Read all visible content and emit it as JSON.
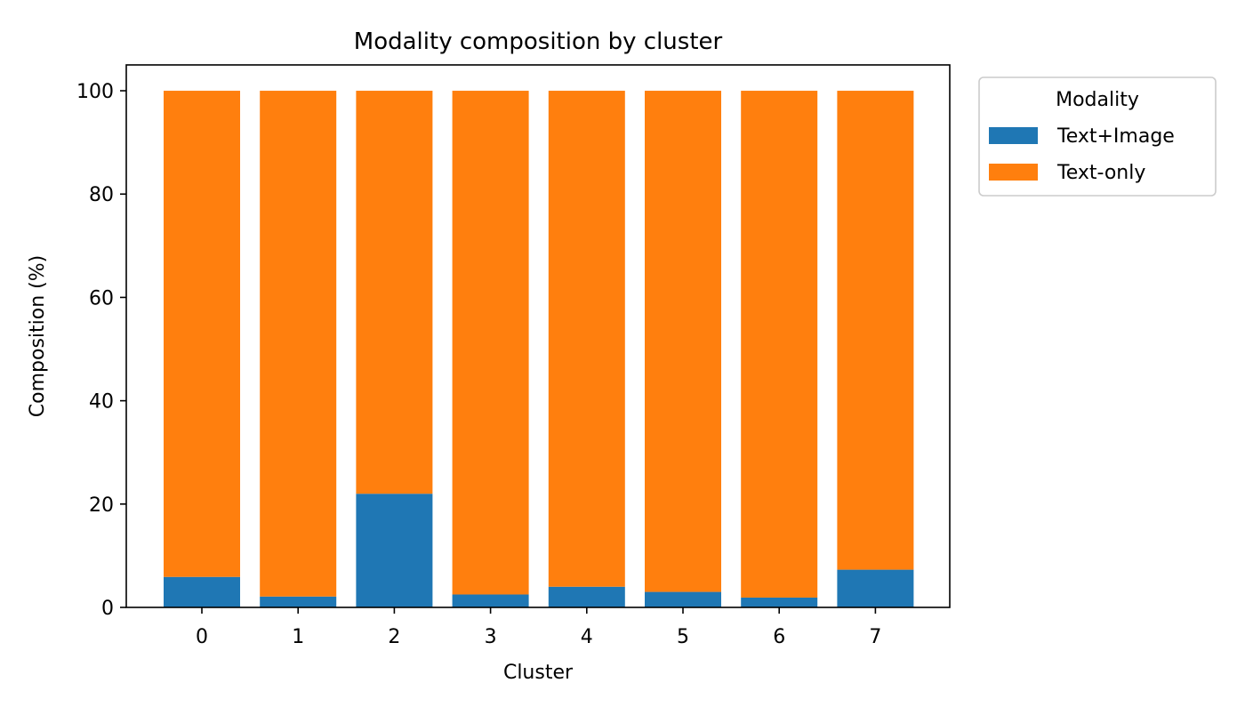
{
  "chart_data": {
    "type": "bar",
    "stacked": true,
    "title": "Modality composition by cluster",
    "xlabel": "Cluster",
    "ylabel": "Composition (%)",
    "ylim": [
      0,
      105
    ],
    "yticks": [
      0,
      20,
      40,
      60,
      80,
      100
    ],
    "categories": [
      "0",
      "1",
      "2",
      "3",
      "4",
      "5",
      "6",
      "7"
    ],
    "series": [
      {
        "name": "Text+Image",
        "color": "#1f77b4",
        "values": [
          5.9,
          2.1,
          22.0,
          2.5,
          4.0,
          3.0,
          1.9,
          7.3
        ]
      },
      {
        "name": "Text-only",
        "color": "#ff7f0e",
        "values": [
          94.1,
          97.9,
          78.0,
          97.5,
          96.0,
          97.0,
          98.1,
          92.7
        ]
      }
    ],
    "grid": false,
    "legend": {
      "title": "Modality",
      "placement": "outside-top-right"
    }
  }
}
